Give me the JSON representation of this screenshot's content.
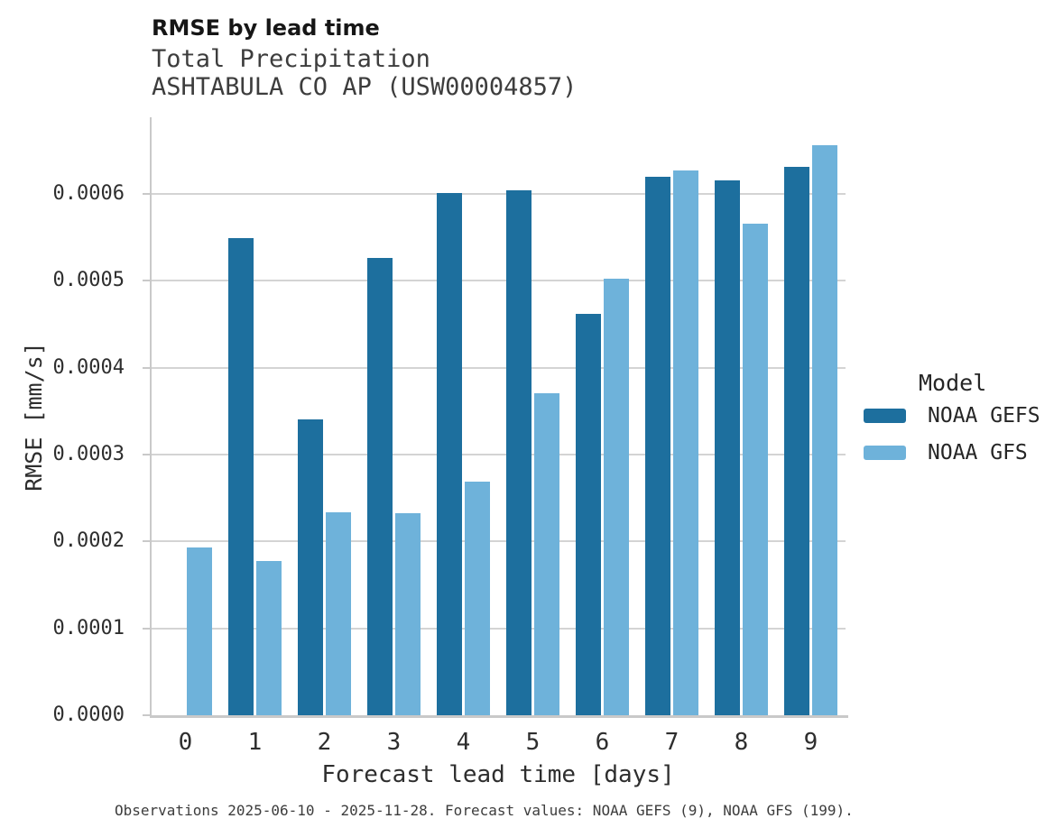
{
  "header": {
    "title": "RMSE by lead time",
    "subtitle_line1": "Total Precipitation",
    "subtitle_line2": "ASHTABULA CO AP (USW00004857)"
  },
  "chart_data": {
    "type": "bar",
    "title": "RMSE by lead time",
    "subtitle": [
      "Total Precipitation",
      "ASHTABULA CO AP (USW00004857)"
    ],
    "categories": [
      "0",
      "1",
      "2",
      "3",
      "4",
      "5",
      "6",
      "7",
      "8",
      "9"
    ],
    "series": [
      {
        "name": "NOAA GEFS",
        "color": "#1d6f9e",
        "values": [
          null,
          0.000549,
          0.00034,
          0.000526,
          0.000601,
          0.000604,
          0.000462,
          0.00062,
          0.000615,
          0.000631
        ]
      },
      {
        "name": "NOAA GFS",
        "color": "#6eb2da",
        "values": [
          0.000193,
          0.000177,
          0.000233,
          0.000232,
          0.000269,
          0.00037,
          0.000502,
          0.000627,
          0.000566,
          0.000656
        ]
      }
    ],
    "xlabel": "Forecast lead time [days]",
    "ylabel": "RMSE [mm/s]",
    "ylim": [
      0,
      0.000688
    ],
    "yticks": [
      0.0,
      0.0001,
      0.0002,
      0.0003,
      0.0004,
      0.0005,
      0.0006
    ],
    "ytick_labels": [
      "0.0000",
      "0.0001",
      "0.0002",
      "0.0003",
      "0.0004",
      "0.0005",
      "0.0006"
    ],
    "grid": "horizontal-only",
    "legend_title": "Model",
    "legend_position": "right",
    "bar_gap_note": "grouped pairs, no GEFS bar at lead 0"
  },
  "legend": {
    "title": "Model",
    "items": [
      {
        "label": "NOAA GEFS",
        "color": "#1d6f9e"
      },
      {
        "label": "NOAA GFS",
        "color": "#6eb2da"
      }
    ]
  },
  "caption": "Observations 2025-06-10 - 2025-11-28. Forecast values: NOAA GEFS (9), NOAA GFS (199).",
  "colors": {
    "gefs_dark_blue": "#1d6f9e",
    "gfs_light_blue": "#6eb2da",
    "gridline": "#d4d4d4",
    "spine": "#c9c9c9",
    "title_text": "#161616",
    "subtitle_text": "#3d3d3d",
    "tick_text": "#2e2e2e"
  }
}
